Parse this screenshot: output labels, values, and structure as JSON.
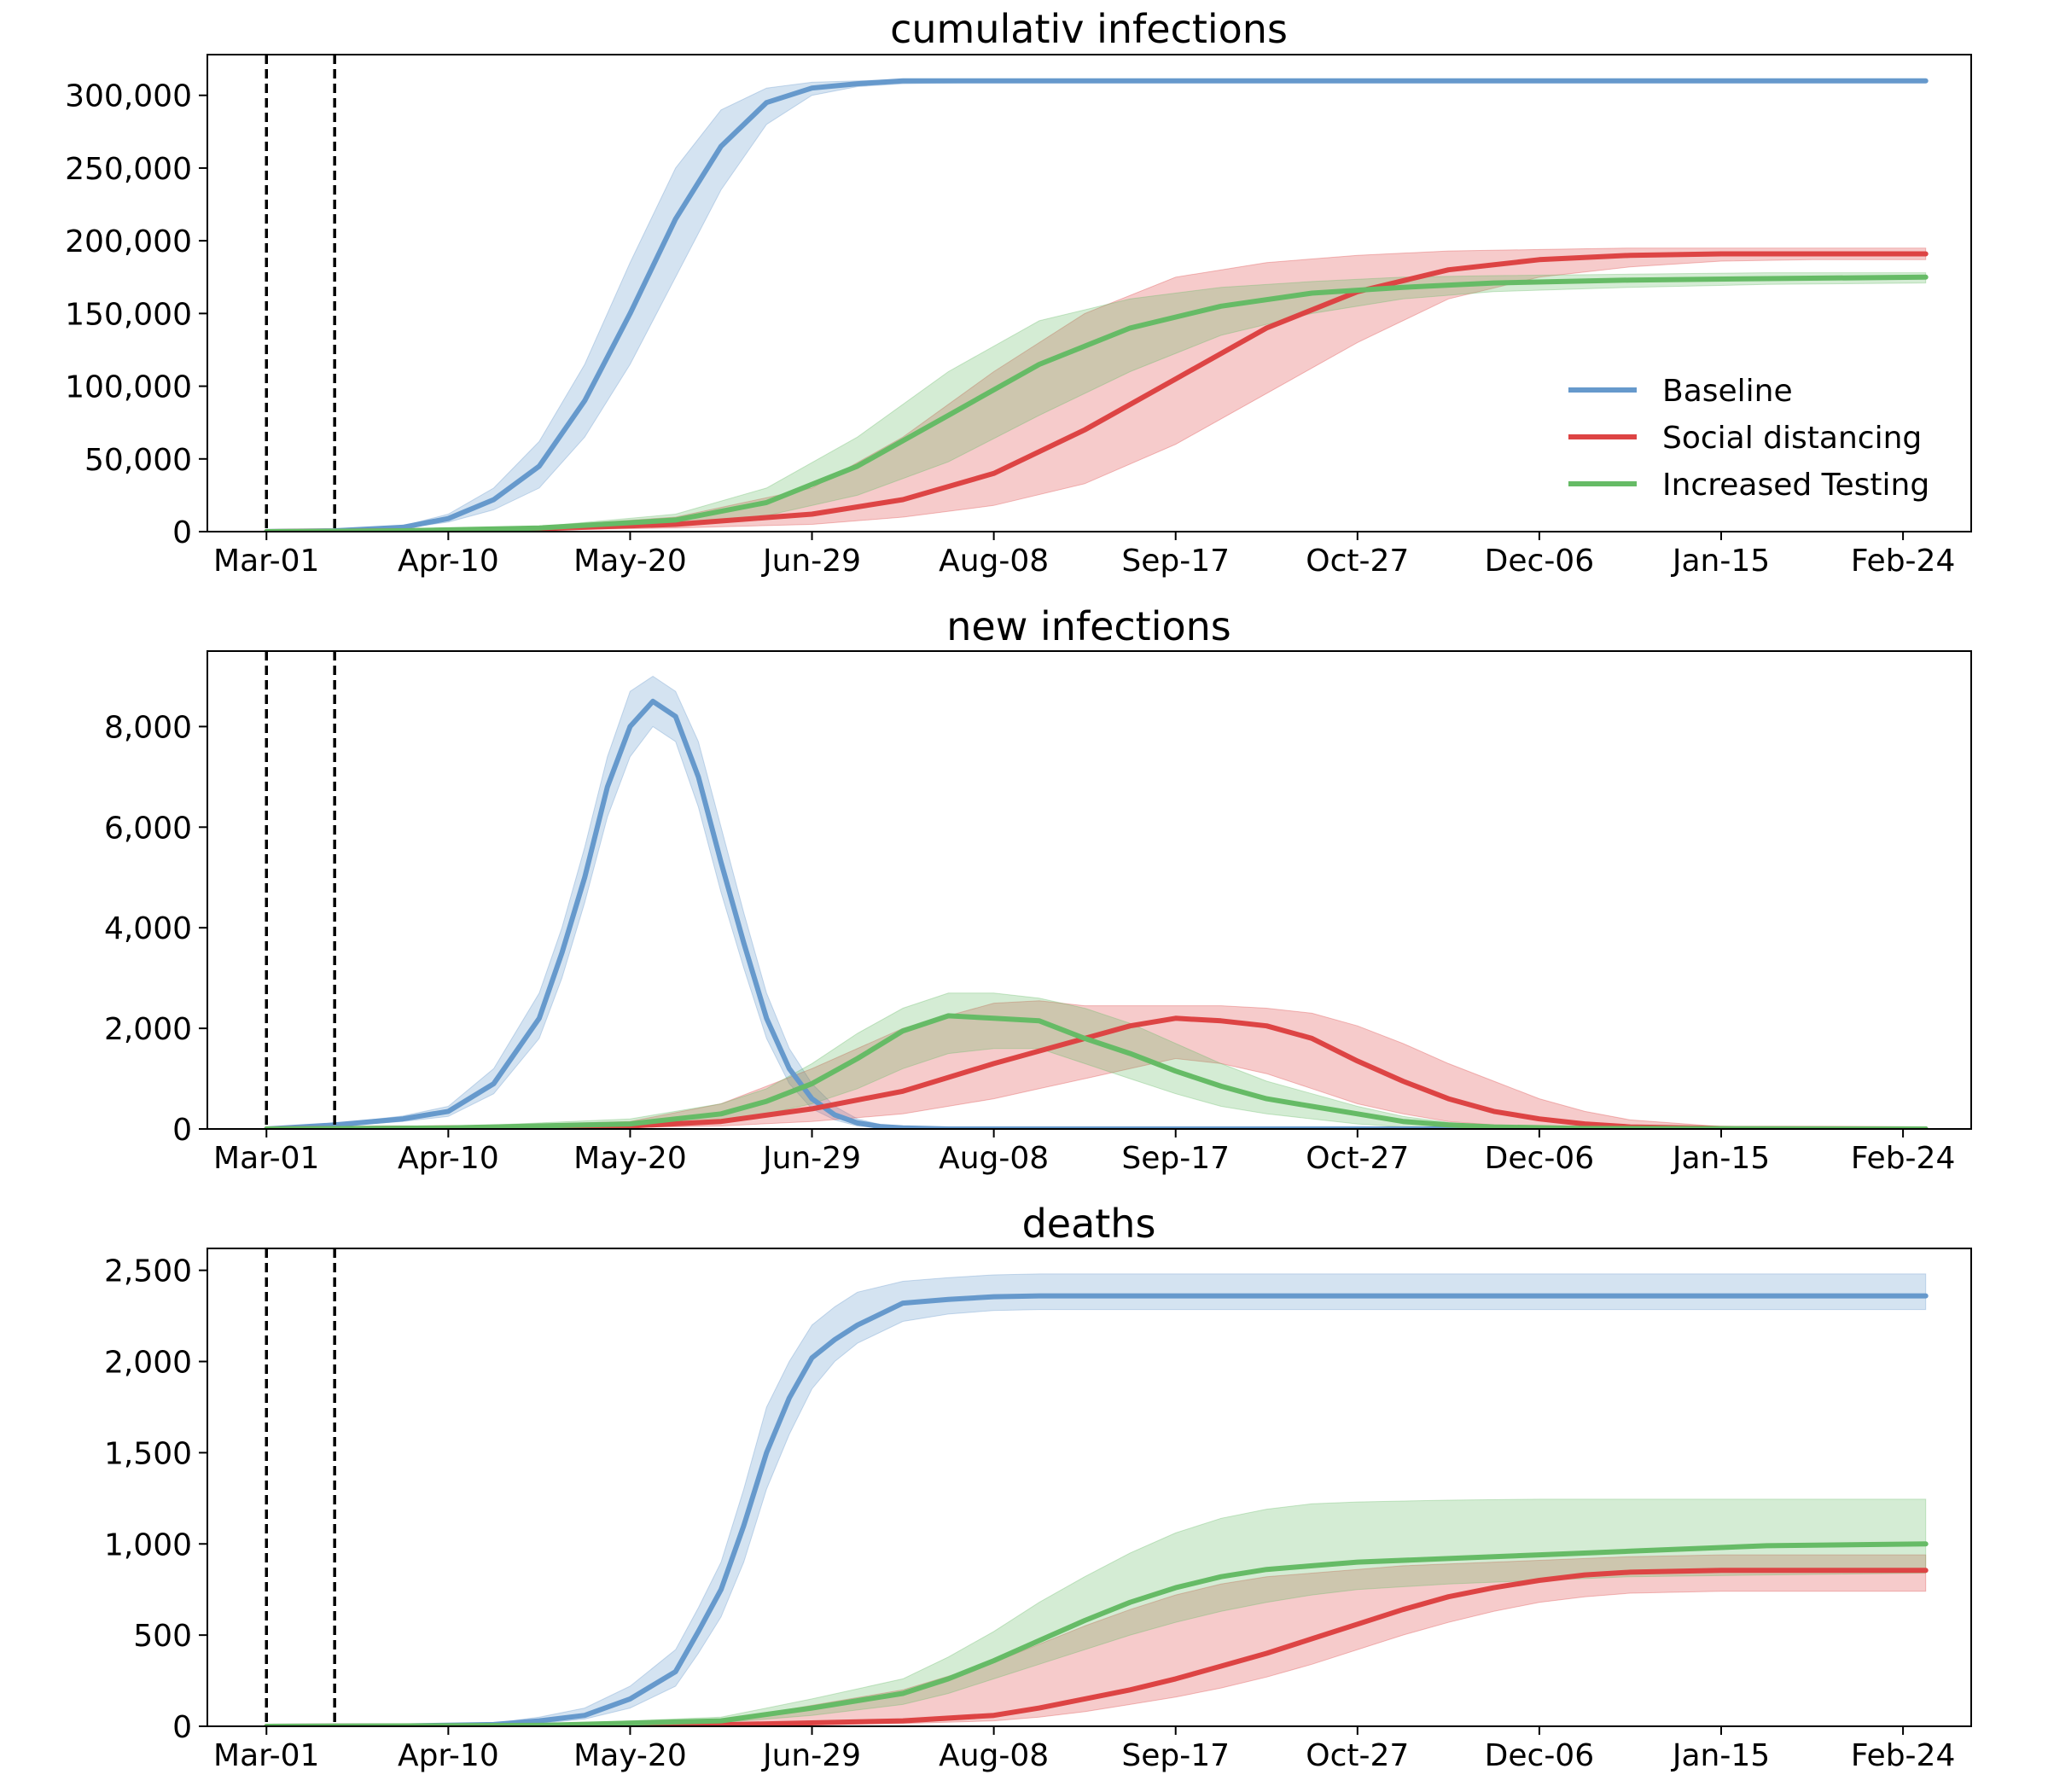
{
  "chart_data": [
    {
      "type": "line",
      "title": "cumulativ infections",
      "x_ticks": [
        "Mar-01",
        "Apr-10",
        "May-20",
        "Jun-29",
        "Aug-08",
        "Sep-17",
        "Oct-27",
        "Dec-06",
        "Jan-15",
        "Feb-24"
      ],
      "xlim": [
        "Feb-17",
        "Mar-09"
      ],
      "xlim_days": [
        -13,
        375
      ],
      "y_ticks": [
        "0",
        "50,000",
        "100,000",
        "150,000",
        "200,000",
        "250,000",
        "300,000"
      ],
      "ylim": [
        0,
        328000
      ],
      "vlines_days": [
        0,
        15
      ],
      "legend": "lower-right",
      "series": [
        {
          "name": "Baseline",
          "color": "#6699cc",
          "x_days": [
            0,
            15,
            30,
            40,
            50,
            60,
            70,
            80,
            90,
            100,
            110,
            120,
            130,
            140,
            160,
            200,
            365
          ],
          "values": [
            50,
            600,
            3000,
            9000,
            22000,
            45000,
            90000,
            150000,
            215000,
            265000,
            295000,
            305000,
            308000,
            310000,
            310000,
            310000,
            310000
          ],
          "lower": [
            50,
            500,
            2300,
            6500,
            15000,
            30000,
            65000,
            115000,
            175000,
            235000,
            280000,
            300000,
            306000,
            308000,
            309000,
            309000,
            309000
          ],
          "upper": [
            50,
            800,
            4000,
            12000,
            30000,
            62000,
            115000,
            185000,
            250000,
            290000,
            305000,
            309000,
            310000,
            311000,
            311000,
            311000,
            311000
          ]
        },
        {
          "name": "Social distancing",
          "color": "#dd4444",
          "x_days": [
            0,
            30,
            60,
            90,
            120,
            140,
            160,
            180,
            200,
            220,
            240,
            260,
            280,
            300,
            320,
            340,
            365
          ],
          "values": [
            0,
            500,
            2000,
            5000,
            12000,
            22000,
            40000,
            70000,
            105000,
            140000,
            165000,
            180000,
            187000,
            190000,
            191000,
            191000,
            191000
          ],
          "lower": [
            0,
            300,
            1000,
            2500,
            5000,
            10000,
            18000,
            33000,
            60000,
            95000,
            130000,
            160000,
            175000,
            182000,
            186000,
            187000,
            187000
          ],
          "upper": [
            0,
            800,
            3500,
            10000,
            30000,
            65000,
            110000,
            150000,
            175000,
            185000,
            190000,
            193000,
            194000,
            195000,
            195000,
            195000,
            195000
          ]
        },
        {
          "name": "Increased Testing",
          "color": "#66bb66",
          "x_days": [
            0,
            30,
            60,
            90,
            110,
            130,
            150,
            170,
            190,
            210,
            230,
            250,
            270,
            300,
            330,
            365
          ],
          "values": [
            0,
            600,
            2500,
            8000,
            20000,
            45000,
            80000,
            115000,
            140000,
            155000,
            164000,
            168000,
            171000,
            173000,
            174000,
            175000
          ],
          "lower": [
            0,
            400,
            1600,
            5000,
            11000,
            25000,
            48000,
            80000,
            110000,
            135000,
            150000,
            160000,
            165000,
            168000,
            170000,
            171000
          ],
          "upper": [
            0,
            800,
            3500,
            12000,
            30000,
            65000,
            110000,
            145000,
            160000,
            168000,
            172000,
            175000,
            176000,
            177000,
            178000,
            178000
          ]
        }
      ]
    },
    {
      "type": "line",
      "title": "new infections",
      "x_ticks": [
        "Mar-01",
        "Apr-10",
        "May-20",
        "Jun-29",
        "Aug-08",
        "Sep-17",
        "Oct-27",
        "Dec-06",
        "Jan-15",
        "Feb-24"
      ],
      "xlim": [
        "Feb-17",
        "Mar-09"
      ],
      "xlim_days": [
        -13,
        375
      ],
      "y_ticks": [
        "0",
        "2,000",
        "4,000",
        "6,000",
        "8,000"
      ],
      "ylim": [
        0,
        9500
      ],
      "vlines_days": [
        0,
        15
      ],
      "series": [
        {
          "name": "Baseline",
          "color": "#6699cc",
          "x_days": [
            0,
            15,
            30,
            40,
            50,
            60,
            65,
            70,
            75,
            80,
            85,
            90,
            95,
            100,
            105,
            110,
            115,
            120,
            125,
            130,
            135,
            140,
            150,
            160,
            365
          ],
          "values": [
            0,
            80,
            200,
            350,
            900,
            2200,
            3500,
            5000,
            6800,
            8000,
            8500,
            8200,
            7000,
            5300,
            3700,
            2200,
            1200,
            600,
            280,
            120,
            50,
            20,
            0,
            0,
            0
          ],
          "lower": [
            0,
            60,
            150,
            250,
            700,
            1800,
            3000,
            4500,
            6200,
            7400,
            8000,
            7700,
            6400,
            4700,
            3200,
            1800,
            900,
            400,
            180,
            60,
            20,
            5,
            0,
            0,
            0
          ],
          "upper": [
            0,
            100,
            260,
            450,
            1200,
            2700,
            4000,
            5600,
            7400,
            8700,
            9000,
            8700,
            7700,
            6000,
            4300,
            2700,
            1600,
            900,
            450,
            200,
            90,
            40,
            10,
            0,
            0
          ]
        },
        {
          "name": "Social distancing",
          "color": "#dd4444",
          "x_days": [
            0,
            40,
            80,
            100,
            120,
            140,
            160,
            170,
            180,
            190,
            200,
            210,
            220,
            230,
            240,
            250,
            260,
            270,
            280,
            290,
            300,
            320,
            365
          ],
          "values": [
            0,
            20,
            60,
            150,
            400,
            750,
            1300,
            1550,
            1800,
            2050,
            2200,
            2150,
            2050,
            1800,
            1350,
            950,
            600,
            350,
            200,
            100,
            40,
            10,
            0
          ],
          "lower": [
            0,
            10,
            30,
            60,
            150,
            300,
            600,
            800,
            1000,
            1200,
            1400,
            1300,
            1100,
            800,
            500,
            300,
            150,
            80,
            30,
            10,
            0,
            0,
            0
          ],
          "upper": [
            0,
            40,
            150,
            500,
            1200,
            2000,
            2500,
            2550,
            2450,
            2450,
            2450,
            2450,
            2400,
            2300,
            2050,
            1700,
            1300,
            950,
            600,
            350,
            180,
            50,
            10
          ]
        },
        {
          "name": "Increased Testing",
          "color": "#66bb66",
          "x_days": [
            0,
            40,
            80,
            100,
            110,
            120,
            130,
            140,
            150,
            160,
            170,
            180,
            190,
            200,
            210,
            220,
            230,
            240,
            250,
            260,
            270,
            290,
            365
          ],
          "values": [
            0,
            20,
            100,
            300,
            550,
            900,
            1400,
            1950,
            2250,
            2200,
            2150,
            1800,
            1500,
            1150,
            850,
            600,
            450,
            300,
            150,
            80,
            40,
            10,
            0
          ],
          "lower": [
            0,
            10,
            50,
            150,
            300,
            500,
            800,
            1200,
            1500,
            1600,
            1600,
            1300,
            1000,
            700,
            450,
            300,
            200,
            100,
            40,
            15,
            5,
            0,
            0
          ],
          "upper": [
            0,
            40,
            200,
            500,
            800,
            1300,
            1900,
            2400,
            2700,
            2700,
            2600,
            2400,
            2100,
            1700,
            1300,
            950,
            700,
            450,
            250,
            130,
            60,
            20,
            0
          ]
        }
      ]
    },
    {
      "type": "line",
      "title": "deaths",
      "x_ticks": [
        "Mar-01",
        "Apr-10",
        "May-20",
        "Jun-29",
        "Aug-08",
        "Sep-17",
        "Oct-27",
        "Dec-06",
        "Jan-15",
        "Feb-24"
      ],
      "xlim": [
        "Feb-17",
        "Mar-09"
      ],
      "xlim_days": [
        -13,
        375
      ],
      "y_ticks": [
        "0",
        "500",
        "1,000",
        "1,500",
        "2,000",
        "2,500"
      ],
      "ylim": [
        0,
        2620
      ],
      "vlines_days": [
        0,
        15
      ],
      "series": [
        {
          "name": "Baseline",
          "color": "#6699cc",
          "x_days": [
            0,
            30,
            50,
            60,
            70,
            80,
            90,
            95,
            100,
            105,
            110,
            115,
            120,
            125,
            130,
            140,
            150,
            160,
            170,
            365
          ],
          "values": [
            0,
            2,
            10,
            30,
            60,
            150,
            300,
            520,
            750,
            1100,
            1500,
            1800,
            2020,
            2120,
            2200,
            2320,
            2340,
            2355,
            2360,
            2360
          ],
          "lower": [
            0,
            1,
            5,
            15,
            40,
            100,
            220,
            400,
            600,
            900,
            1300,
            1600,
            1850,
            2000,
            2100,
            2220,
            2260,
            2280,
            2285,
            2285
          ],
          "upper": [
            0,
            4,
            18,
            50,
            100,
            220,
            420,
            650,
            900,
            1300,
            1750,
            2000,
            2200,
            2300,
            2380,
            2440,
            2460,
            2475,
            2480,
            2480
          ]
        },
        {
          "name": "Social distancing",
          "color": "#dd4444",
          "x_days": [
            0,
            60,
            100,
            140,
            160,
            170,
            180,
            190,
            200,
            210,
            220,
            230,
            240,
            250,
            260,
            270,
            280,
            290,
            300,
            320,
            365
          ],
          "values": [
            0,
            2,
            8,
            30,
            60,
            100,
            150,
            200,
            260,
            330,
            400,
            480,
            560,
            640,
            710,
            760,
            800,
            830,
            845,
            855,
            855
          ],
          "lower": [
            0,
            1,
            4,
            15,
            30,
            50,
            80,
            120,
            160,
            210,
            270,
            340,
            420,
            500,
            570,
            630,
            680,
            710,
            730,
            740,
            740
          ],
          "upper": [
            0,
            5,
            30,
            200,
            350,
            450,
            550,
            640,
            720,
            780,
            820,
            840,
            860,
            880,
            890,
            900,
            910,
            920,
            930,
            940,
            940
          ]
        },
        {
          "name": "Increased Testing",
          "color": "#66bb66",
          "x_days": [
            0,
            60,
            100,
            120,
            140,
            150,
            160,
            170,
            180,
            190,
            200,
            210,
            220,
            230,
            240,
            260,
            280,
            300,
            330,
            365
          ],
          "values": [
            0,
            5,
            30,
            100,
            180,
            260,
            360,
            470,
            580,
            680,
            760,
            820,
            860,
            880,
            900,
            920,
            940,
            960,
            990,
            1000
          ],
          "lower": [
            0,
            2,
            20,
            60,
            120,
            180,
            260,
            340,
            420,
            500,
            570,
            630,
            680,
            720,
            750,
            780,
            800,
            820,
            830,
            840
          ],
          "upper": [
            0,
            10,
            50,
            150,
            260,
            380,
            520,
            680,
            820,
            950,
            1060,
            1140,
            1190,
            1220,
            1230,
            1240,
            1245,
            1245,
            1245,
            1245
          ]
        }
      ]
    }
  ]
}
